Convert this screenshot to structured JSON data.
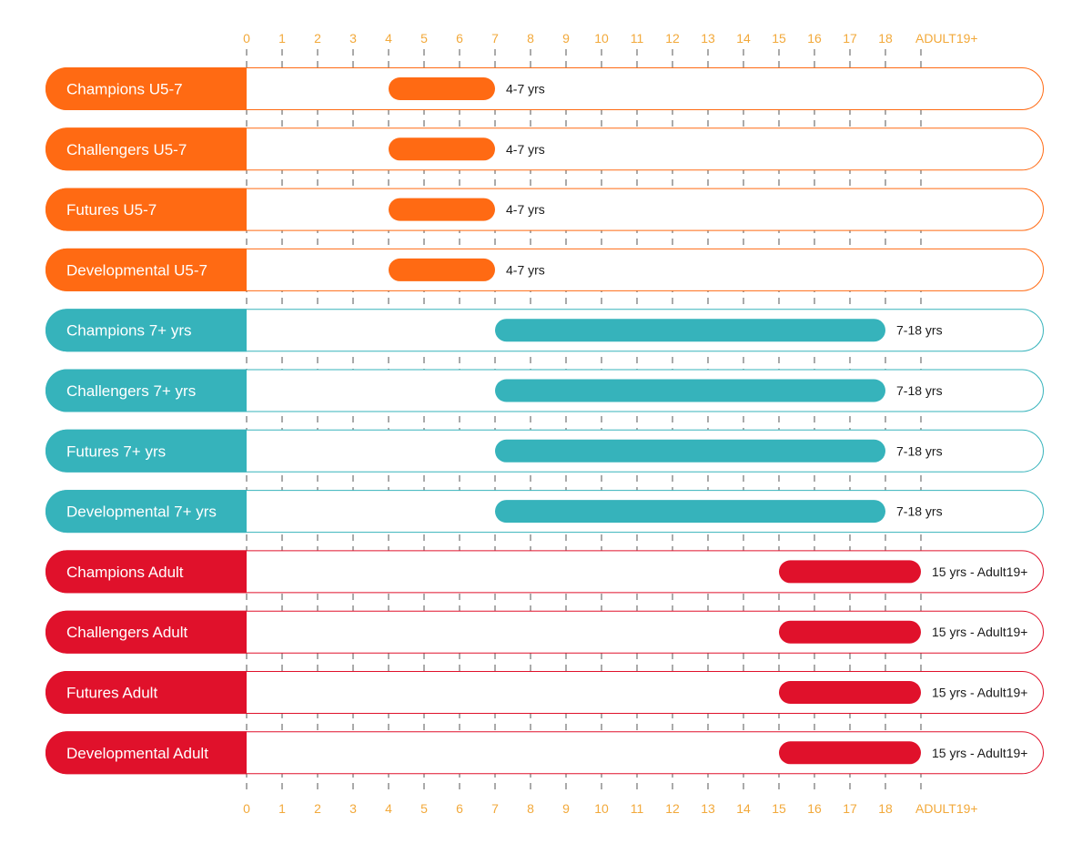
{
  "chart_data": {
    "type": "range-bar",
    "title": "",
    "axis_ticks": [
      "0",
      "1",
      "2",
      "3",
      "4",
      "5",
      "6",
      "7",
      "8",
      "9",
      "10",
      "11",
      "12",
      "13",
      "14",
      "15",
      "16",
      "17",
      "18",
      "ADULT19+"
    ],
    "xlim": [
      0,
      19
    ],
    "grid": "dashed",
    "tick_color": "#f2a93b",
    "groups": [
      {
        "name": "U5-7",
        "color": "#ff6a13"
      },
      {
        "name": "7+ yrs",
        "color": "#36b3bb"
      },
      {
        "name": "Adult",
        "color": "#e0112b"
      }
    ],
    "rows": [
      {
        "label": "Champions U5-7",
        "group": 0,
        "start": 4,
        "end": 7,
        "range_label": "4-7 yrs"
      },
      {
        "label": "Challengers U5-7",
        "group": 0,
        "start": 4,
        "end": 7,
        "range_label": "4-7 yrs"
      },
      {
        "label": "Futures U5-7",
        "group": 0,
        "start": 4,
        "end": 7,
        "range_label": "4-7 yrs"
      },
      {
        "label": "Developmental U5-7",
        "group": 0,
        "start": 4,
        "end": 7,
        "range_label": "4-7 yrs"
      },
      {
        "label": "Champions 7+ yrs",
        "group": 1,
        "start": 7,
        "end": 18,
        "range_label": "7-18 yrs"
      },
      {
        "label": "Challengers 7+ yrs",
        "group": 1,
        "start": 7,
        "end": 18,
        "range_label": "7-18 yrs"
      },
      {
        "label": "Futures 7+ yrs",
        "group": 1,
        "start": 7,
        "end": 18,
        "range_label": "7-18 yrs"
      },
      {
        "label": "Developmental 7+ yrs",
        "group": 1,
        "start": 7,
        "end": 18,
        "range_label": "7-18 yrs"
      },
      {
        "label": "Champions Adult",
        "group": 2,
        "start": 15,
        "end": 19,
        "range_label": "15 yrs - Adult19+"
      },
      {
        "label": "Challengers Adult",
        "group": 2,
        "start": 15,
        "end": 19,
        "range_label": "15 yrs - Adult19+"
      },
      {
        "label": "Futures Adult",
        "group": 2,
        "start": 15,
        "end": 19,
        "range_label": "15 yrs - Adult19+"
      },
      {
        "label": "Developmental Adult",
        "group": 2,
        "start": 15,
        "end": 19,
        "range_label": "15 yrs - Adult19+"
      }
    ]
  }
}
